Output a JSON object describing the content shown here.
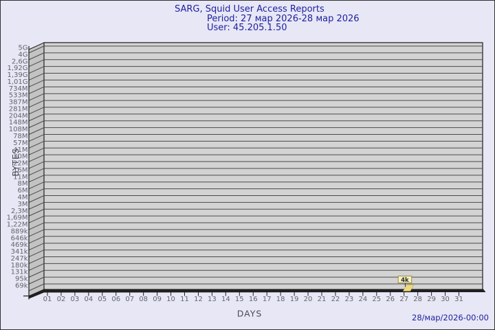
{
  "page": {
    "background": "#e7e7f6",
    "border_color": "#2f2f2f"
  },
  "header": {
    "title": "SARG, Squid User Access Reports",
    "period": "Period: 27 мар 2026-28 мар 2026",
    "user": "User: 45.205.1.50",
    "text_color": "#1e1e9e"
  },
  "footer": {
    "timestamp": "28/мар/2026-00:00"
  },
  "chart_data": {
    "type": "bar",
    "style": "3d",
    "title": "SARG, Squid User Access Reports",
    "xlabel": "DAYS",
    "ylabel": "BYTES",
    "y_scale": "log",
    "grid": "horizontal",
    "x_ticks": [
      "01",
      "02",
      "03",
      "04",
      "05",
      "06",
      "07",
      "08",
      "09",
      "10",
      "11",
      "12",
      "13",
      "14",
      "15",
      "16",
      "17",
      "18",
      "19",
      "20",
      "21",
      "22",
      "23",
      "24",
      "25",
      "26",
      "27",
      "28",
      "29",
      "30",
      "31"
    ],
    "y_ticks_top_to_bottom": [
      "5G",
      "4G",
      "2,6G",
      "1,92G",
      "1,39G",
      "1,01G",
      "734M",
      "533M",
      "387M",
      "281M",
      "204M",
      "148M",
      "108M",
      "78M",
      "57M",
      "41M",
      "30M",
      "22M",
      "16M",
      "11M",
      "8M",
      "6M",
      "4M",
      "3M",
      "2,3M",
      "1,69M",
      "1,22M",
      "889k",
      "646k",
      "469k",
      "341k",
      "247k",
      "180k",
      "131k",
      "95k",
      "69k"
    ],
    "series": [
      {
        "name": "bytes-per-day",
        "points": [
          {
            "x": "27",
            "label": "4k",
            "approx_bytes": 4000
          }
        ]
      }
    ],
    "annotations": [
      {
        "x": "27",
        "text": "4k"
      }
    ],
    "colors": {
      "plot_face": "#d3d3d3",
      "plot_wall": "#c3c3c3",
      "grid_line": "#4a4a4a",
      "frame": "#1f1f1f",
      "tick_text": "#64646c",
      "axis_title_text": "#4c4c54",
      "marker_fill": "#eed87c",
      "marker_edge": "#b3a24d",
      "marker_box_fill": "#f6f0c2",
      "marker_box_border": "#9b8d3e",
      "marker_text": "#2a2a2a"
    }
  }
}
